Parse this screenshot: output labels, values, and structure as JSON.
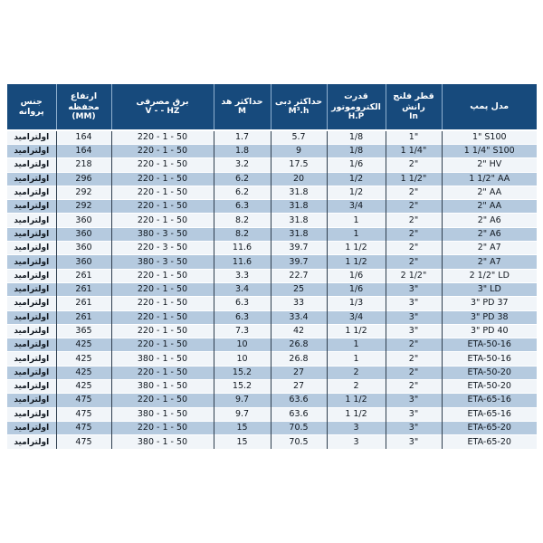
{
  "page": {
    "background": "#ffffff",
    "description_visible_content_language": "fa"
  },
  "chart_data": {
    "type": "table",
    "direction": "rtl",
    "columns": [
      {
        "id": "impeller-material",
        "label_fa": "جنس پروانه",
        "label_en": ""
      },
      {
        "id": "housing-height",
        "label_fa": "ارتفاع محفظه",
        "label_en": "(MM)"
      },
      {
        "id": "power-supply",
        "label_fa": "برق مصرفی",
        "label_en": "V -  - HZ"
      },
      {
        "id": "max-head",
        "label_fa": "حداکثر هد",
        "label_en": "M"
      },
      {
        "id": "max-flow",
        "label_fa": "حداکثر دبی",
        "label_en": "M³.h"
      },
      {
        "id": "motor-power",
        "label_fa": "قدرت الکتروموتور",
        "label_en": "H.P"
      },
      {
        "id": "discharge-flange-diameter",
        "label_fa": "قطر فلنج رانش",
        "label_en": "In"
      },
      {
        "id": "pump-model",
        "label_fa": "مدل پمپ",
        "label_en": ""
      }
    ],
    "rows": [
      [
        "اولترامید",
        "164",
        "220 - 1 - 50",
        "1.7",
        "5.7",
        "1/8",
        "1\"",
        "1\" S100"
      ],
      [
        "اولترامید",
        "164",
        "220 - 1 - 50",
        "1.8",
        "9",
        "1/8",
        "1 1/4\"",
        "1 1/4\" S100"
      ],
      [
        "اولترامید",
        "218",
        "220 - 1 - 50",
        "3.2",
        "17.5",
        "1/6",
        "2\"",
        "2\" HV"
      ],
      [
        "اولترامید",
        "296",
        "220 - 1 - 50",
        "6.2",
        "20",
        "1/2",
        "1 1/2\"",
        "1 1/2\" AA"
      ],
      [
        "اولترامید",
        "292",
        "220 - 1 - 50",
        "6.2",
        "31.8",
        "1/2",
        "2\"",
        "2\" AA"
      ],
      [
        "اولترامید",
        "292",
        "220 - 1 - 50",
        "6.3",
        "31.8",
        "3/4",
        "2\"",
        "2\" AA"
      ],
      [
        "اولترامید",
        "360",
        "220 - 1 - 50",
        "8.2",
        "31.8",
        "1",
        "2\"",
        "2\" A6"
      ],
      [
        "اولترامید",
        "360",
        "380 - 3 - 50",
        "8.2",
        "31.8",
        "1",
        "2\"",
        "2\" A6"
      ],
      [
        "اولترامید",
        "360",
        "220 - 3 - 50",
        "11.6",
        "39.7",
        "1 1/2",
        "2\"",
        "2\" A7"
      ],
      [
        "اولترامید",
        "360",
        "380 - 3 - 50",
        "11.6",
        "39.7",
        "1 1/2",
        "2\"",
        "2\" A7"
      ],
      [
        "اولترامید",
        "261",
        "220 - 1 - 50",
        "3.3",
        "22.7",
        "1/6",
        "2 1/2\"",
        "2 1/2\" LD"
      ],
      [
        "اولترامید",
        "261",
        "220 - 1 - 50",
        "3.4",
        "25",
        "1/6",
        "3\"",
        "3\" LD"
      ],
      [
        "اولترامید",
        "261",
        "220 - 1 - 50",
        "6.3",
        "33",
        "1/3",
        "3\"",
        "3\" PD 37"
      ],
      [
        "اولترامید",
        "261",
        "220 - 1 - 50",
        "6.3",
        "33.4",
        "3/4",
        "3\"",
        "3\" PD 38"
      ],
      [
        "اولترامید",
        "365",
        "220 - 1 - 50",
        "7.3",
        "42",
        "1 1/2",
        "3\"",
        "3\" PD 40"
      ],
      [
        "اولترامید",
        "425",
        "220 - 1 - 50",
        "10",
        "26.8",
        "1",
        "2\"",
        "ETA-50-16"
      ],
      [
        "اولترامید",
        "425",
        "380 - 1 - 50",
        "10",
        "26.8",
        "1",
        "2\"",
        "ETA-50-16"
      ],
      [
        "اولترامید",
        "425",
        "220 - 1 - 50",
        "15.2",
        "27",
        "2",
        "2\"",
        "ETA-50-20"
      ],
      [
        "اولترامید",
        "425",
        "380 - 1 - 50",
        "15.2",
        "27",
        "2",
        "2\"",
        "ETA-50-20"
      ],
      [
        "اولترامید",
        "475",
        "220 - 1 - 50",
        "9.7",
        "63.6",
        "1 1/2",
        "3\"",
        "ETA-65-16"
      ],
      [
        "اولترامید",
        "475",
        "380 - 1 - 50",
        "9.7",
        "63.6",
        "1 1/2",
        "3\"",
        "ETA-65-16"
      ],
      [
        "اولترامید",
        "475",
        "220 - 1 - 50",
        "15",
        "70.5",
        "3",
        "3\"",
        "ETA-65-20"
      ],
      [
        "اولترامید",
        "475",
        "380 - 1 - 50",
        "15",
        "70.5",
        "3",
        "3\"",
        "ETA-65-20"
      ]
    ]
  },
  "colors": {
    "header_bg": "#174a7c",
    "header_text": "#ffffff",
    "row_light": "#f1f5f9",
    "row_alt": "#b5cadf",
    "grid_dark": "#2f3e4e",
    "header_grid": "#8fb0cf",
    "cell_text": "#111820"
  }
}
